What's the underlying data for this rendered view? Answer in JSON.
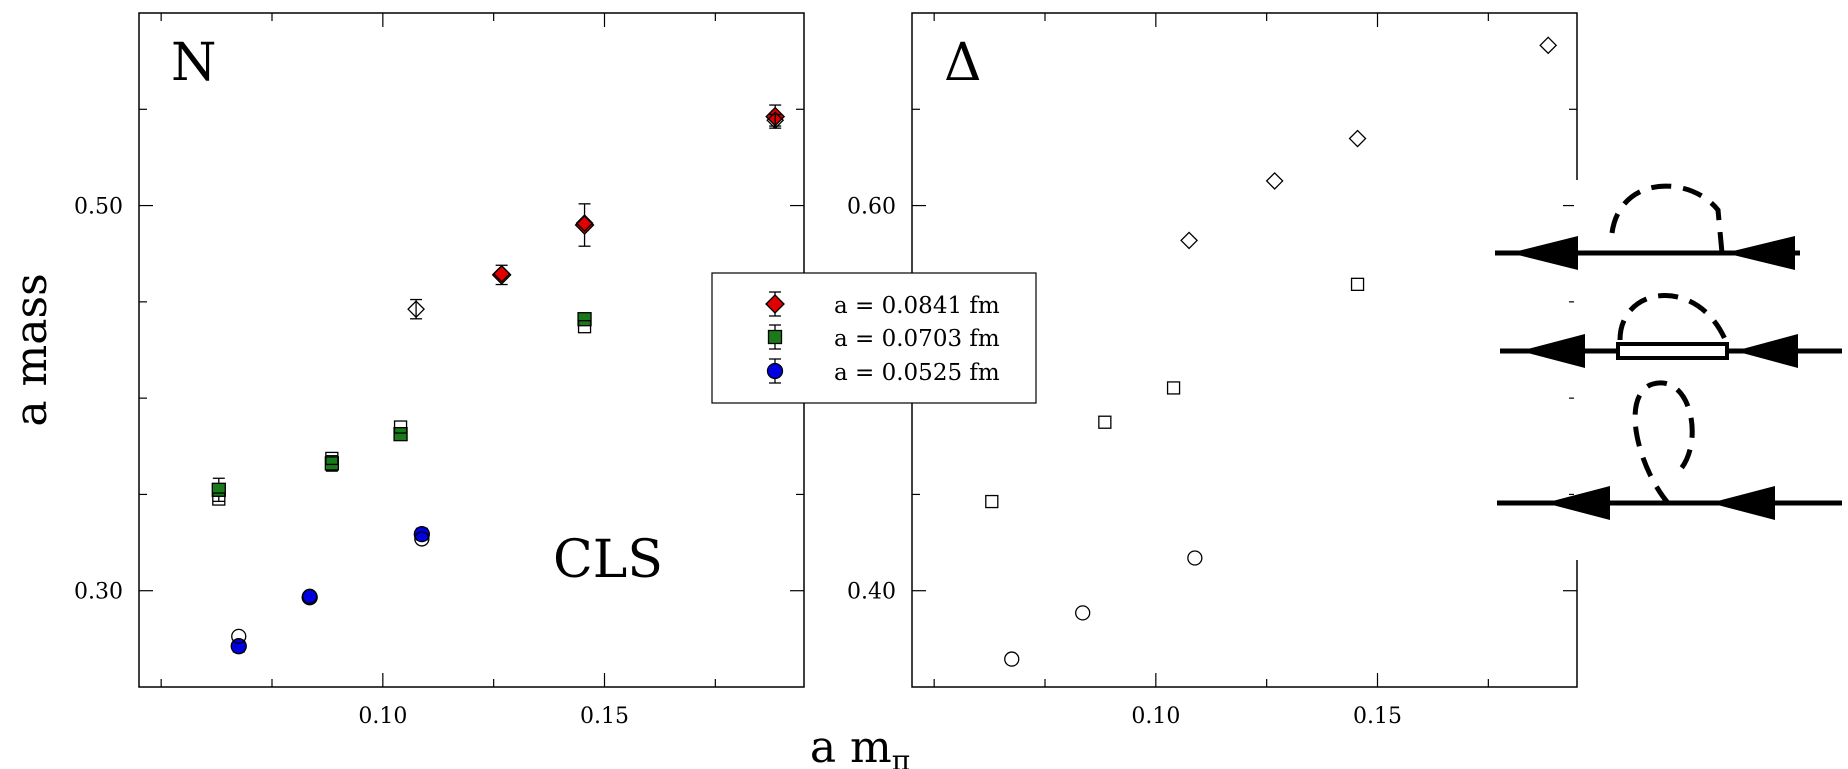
{
  "chart_data": [
    {
      "type": "scatter",
      "panel_label": "N",
      "annotation": "CLS",
      "xlabel": "a m",
      "xlabel_sub": "π",
      "ylabel": "a mass",
      "xlim": [
        0.045,
        0.195
      ],
      "ylim": [
        0.25,
        0.6
      ],
      "xticks": [
        0.1,
        0.15
      ],
      "xtick_labels": [
        "0.10",
        "0.15"
      ],
      "yticks": [
        0.3,
        0.5
      ],
      "ytick_labels": [
        "0.30",
        "0.50"
      ],
      "legend": {
        "placement": "center-right",
        "entries": [
          "a = 0.0841 fm",
          "a = 0.0703 fm",
          "a = 0.0525 fm"
        ]
      },
      "series": [
        {
          "name": "a = 0.0841 fm",
          "marker": "diamond",
          "color": "#e00000",
          "x": [
            0.1268,
            0.1455,
            0.1885
          ],
          "y": [
            0.464,
            0.4899,
            0.5462
          ],
          "err": [
            0.005,
            0.011,
            0.006
          ]
        },
        {
          "name": "a = 0.0703 fm",
          "marker": "square",
          "color": "#1a7a1a",
          "x": [
            0.063,
            0.0885,
            0.104,
            0.1455
          ],
          "y": [
            0.3524,
            0.3661,
            0.3813,
            0.441
          ],
          "err": [
            0.006,
            0.004,
            0.003,
            0.002
          ]
        },
        {
          "name": "a = 0.0525 fm",
          "marker": "circle",
          "color": "#0000e0",
          "x": [
            0.0675,
            0.0835,
            0.1088
          ],
          "y": [
            0.2712,
            0.2966,
            0.3294
          ],
          "err": [
            0.003,
            0.002,
            0.003
          ]
        },
        {
          "name": "",
          "marker": "diamond-open",
          "color": "#000000",
          "x": [
            0.1075,
            0.1268,
            0.1455,
            0.1885
          ],
          "y": [
            0.4462,
            0.4646,
            0.4909,
            0.5443
          ],
          "err": [
            0.005,
            0,
            0,
            0.003
          ]
        },
        {
          "name": "",
          "marker": "square-open",
          "color": "#000000",
          "x": [
            0.063,
            0.0885,
            0.104,
            0.1455
          ],
          "y": [
            0.3476,
            0.3687,
            0.385,
            0.4371
          ],
          "err": [
            0,
            0,
            0,
            0
          ]
        },
        {
          "name": "",
          "marker": "circle-open",
          "color": "#000000",
          "x": [
            0.0675,
            0.0835,
            0.1088
          ],
          "y": [
            0.2763,
            0.2971,
            0.3269
          ],
          "err": [
            0,
            0,
            0
          ]
        }
      ]
    },
    {
      "type": "scatter",
      "panel_label": "Δ",
      "xlim": [
        0.045,
        0.195
      ],
      "ylim": [
        0.35,
        0.7
      ],
      "xticks": [
        0.1,
        0.15
      ],
      "xtick_labels": [
        "0.10",
        "0.15"
      ],
      "yticks": [
        0.4,
        0.6
      ],
      "ytick_labels": [
        "0.40",
        "0.60"
      ],
      "series": [
        {
          "name": "",
          "marker": "diamond-open",
          "color": "#000000",
          "x": [
            0.1075,
            0.1268,
            0.1455,
            0.1885
          ],
          "y": [
            0.5819,
            0.6128,
            0.6348,
            0.6832
          ],
          "err": []
        },
        {
          "name": "",
          "marker": "square-open",
          "color": "#000000",
          "x": [
            0.063,
            0.0885,
            0.104,
            0.1455
          ],
          "y": [
            0.4463,
            0.4875,
            0.5053,
            0.5591
          ],
          "err": []
        },
        {
          "name": "",
          "marker": "circle-open",
          "color": "#000000",
          "x": [
            0.0675,
            0.0835,
            0.1088
          ],
          "y": [
            0.3645,
            0.3885,
            0.417
          ],
          "err": []
        }
      ]
    }
  ]
}
